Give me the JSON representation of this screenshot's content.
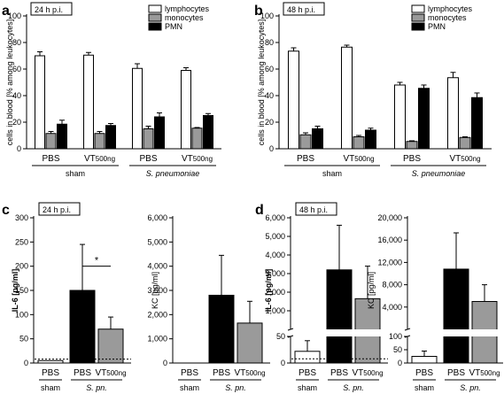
{
  "chart_data": [
    {
      "panel": "a",
      "tag": "24 h p.i.",
      "type": "bar",
      "ylabel": "cells in blood [% among leukocytes]",
      "ylim": [
        0,
        100
      ],
      "yticks": [
        "0",
        "20",
        "40",
        "60",
        "80",
        "100"
      ],
      "categories": [
        "PBS",
        "VT500ng",
        "PBS",
        "VT500ng"
      ],
      "groups": [
        "sham",
        "S. pneumoniae"
      ],
      "legend": [
        "lymphocytes",
        "monocytes",
        "PMN"
      ],
      "series": [
        {
          "name": "lymphocytes",
          "color": "#ffffff",
          "values": [
            70,
            70.5,
            60.5,
            59
          ],
          "errors": [
            3,
            2,
            3.5,
            2
          ]
        },
        {
          "name": "monocytes",
          "color": "#9a9a9a",
          "values": [
            11.5,
            11.5,
            15,
            15.5
          ],
          "errors": [
            1.5,
            1.5,
            2,
            0.5
          ]
        },
        {
          "name": "PMN",
          "color": "#000000",
          "values": [
            18.5,
            17.5,
            24,
            25
          ],
          "errors": [
            3,
            1.5,
            3,
            1.5
          ]
        }
      ]
    },
    {
      "panel": "b",
      "tag": "48 h p.i.",
      "type": "bar",
      "ylabel": "cells in blood [% among leukocytes]",
      "ylim": [
        0,
        100
      ],
      "yticks": [
        "0",
        "20",
        "40",
        "60",
        "80",
        "100"
      ],
      "categories": [
        "PBS",
        "VT500ng",
        "PBS",
        "VT500ng"
      ],
      "groups": [
        "sham",
        "S. pneumoniae"
      ],
      "legend": [
        "lymphocytes",
        "monocytes",
        "PMN"
      ],
      "series": [
        {
          "name": "lymphocytes",
          "color": "#ffffff",
          "values": [
            73.5,
            76.5,
            48,
            53.5
          ],
          "errors": [
            2.5,
            1.5,
            2,
            4
          ]
        },
        {
          "name": "monocytes",
          "color": "#9a9a9a",
          "values": [
            10.5,
            9,
            5.5,
            8.5
          ],
          "errors": [
            1.5,
            1,
            0.5,
            0.5
          ]
        },
        {
          "name": "PMN",
          "color": "#000000",
          "values": [
            15,
            14,
            45.5,
            38.5
          ],
          "errors": [
            2,
            1.5,
            2.5,
            3.5
          ]
        }
      ]
    },
    {
      "panel": "c",
      "tag": "24 h p.i.",
      "type": "bar",
      "ylabel": "IL-6 [pg/ml]",
      "ylim": [
        0,
        300
      ],
      "yticks": [
        "0",
        "50",
        "100",
        "150",
        "200",
        "250",
        "300"
      ],
      "categories": [
        "PBS",
        "PBS",
        "VT500ng"
      ],
      "groups": [
        "sham",
        "S. pn."
      ],
      "colors": [
        "#ffffff",
        "#000000",
        "#9a9a9a"
      ],
      "values": [
        5,
        150,
        70
      ],
      "errors": [
        0,
        95,
        25
      ],
      "baseline": 8,
      "significance": "*"
    },
    {
      "panel": "c",
      "type": "bar",
      "ylabel": "KC [pg/ml]",
      "ylim": [
        0,
        6000
      ],
      "yticks": [
        "0",
        "1,000",
        "2,000",
        "3,000",
        "4,000",
        "5,000",
        "6,000"
      ],
      "categories": [
        "PBS",
        "PBS",
        "VT500ng"
      ],
      "groups": [
        "sham",
        "S. pn."
      ],
      "colors": [
        "#ffffff",
        "#000000",
        "#9a9a9a"
      ],
      "values": [
        0,
        2800,
        1650
      ],
      "errors": [
        0,
        1650,
        900
      ]
    },
    {
      "panel": "d",
      "tag": "48 h p.i.",
      "type": "bar",
      "ylabel": "IL-6 [pg/ml]",
      "yticks_lower": [
        "0",
        "50"
      ],
      "yticks_upper": [
        "1,000",
        "2,000",
        "3,000",
        "4,000",
        "5,000",
        "6,000"
      ],
      "categories": [
        "PBS",
        "PBS",
        "VT500ng"
      ],
      "groups": [
        "sham",
        "S. pn."
      ],
      "colors": [
        "#ffffff",
        "#000000",
        "#9a9a9a"
      ],
      "values": [
        22,
        3200,
        1650
      ],
      "errors": [
        20,
        2400,
        1750
      ],
      "baseline": 8
    },
    {
      "panel": "d",
      "type": "bar",
      "ylabel": "KC [pg/ml]",
      "yticks_lower": [
        "0",
        "50",
        "100"
      ],
      "yticks_upper": [
        "4,000",
        "8,000",
        "12,000",
        "16,000",
        "20,000"
      ],
      "categories": [
        "PBS",
        "PBS",
        "VT500ng"
      ],
      "groups": [
        "sham",
        "S. pn."
      ],
      "colors": [
        "#ffffff",
        "#000000",
        "#9a9a9a"
      ],
      "values": [
        25,
        10800,
        5000
      ],
      "errors": [
        20,
        6500,
        3000
      ]
    }
  ]
}
